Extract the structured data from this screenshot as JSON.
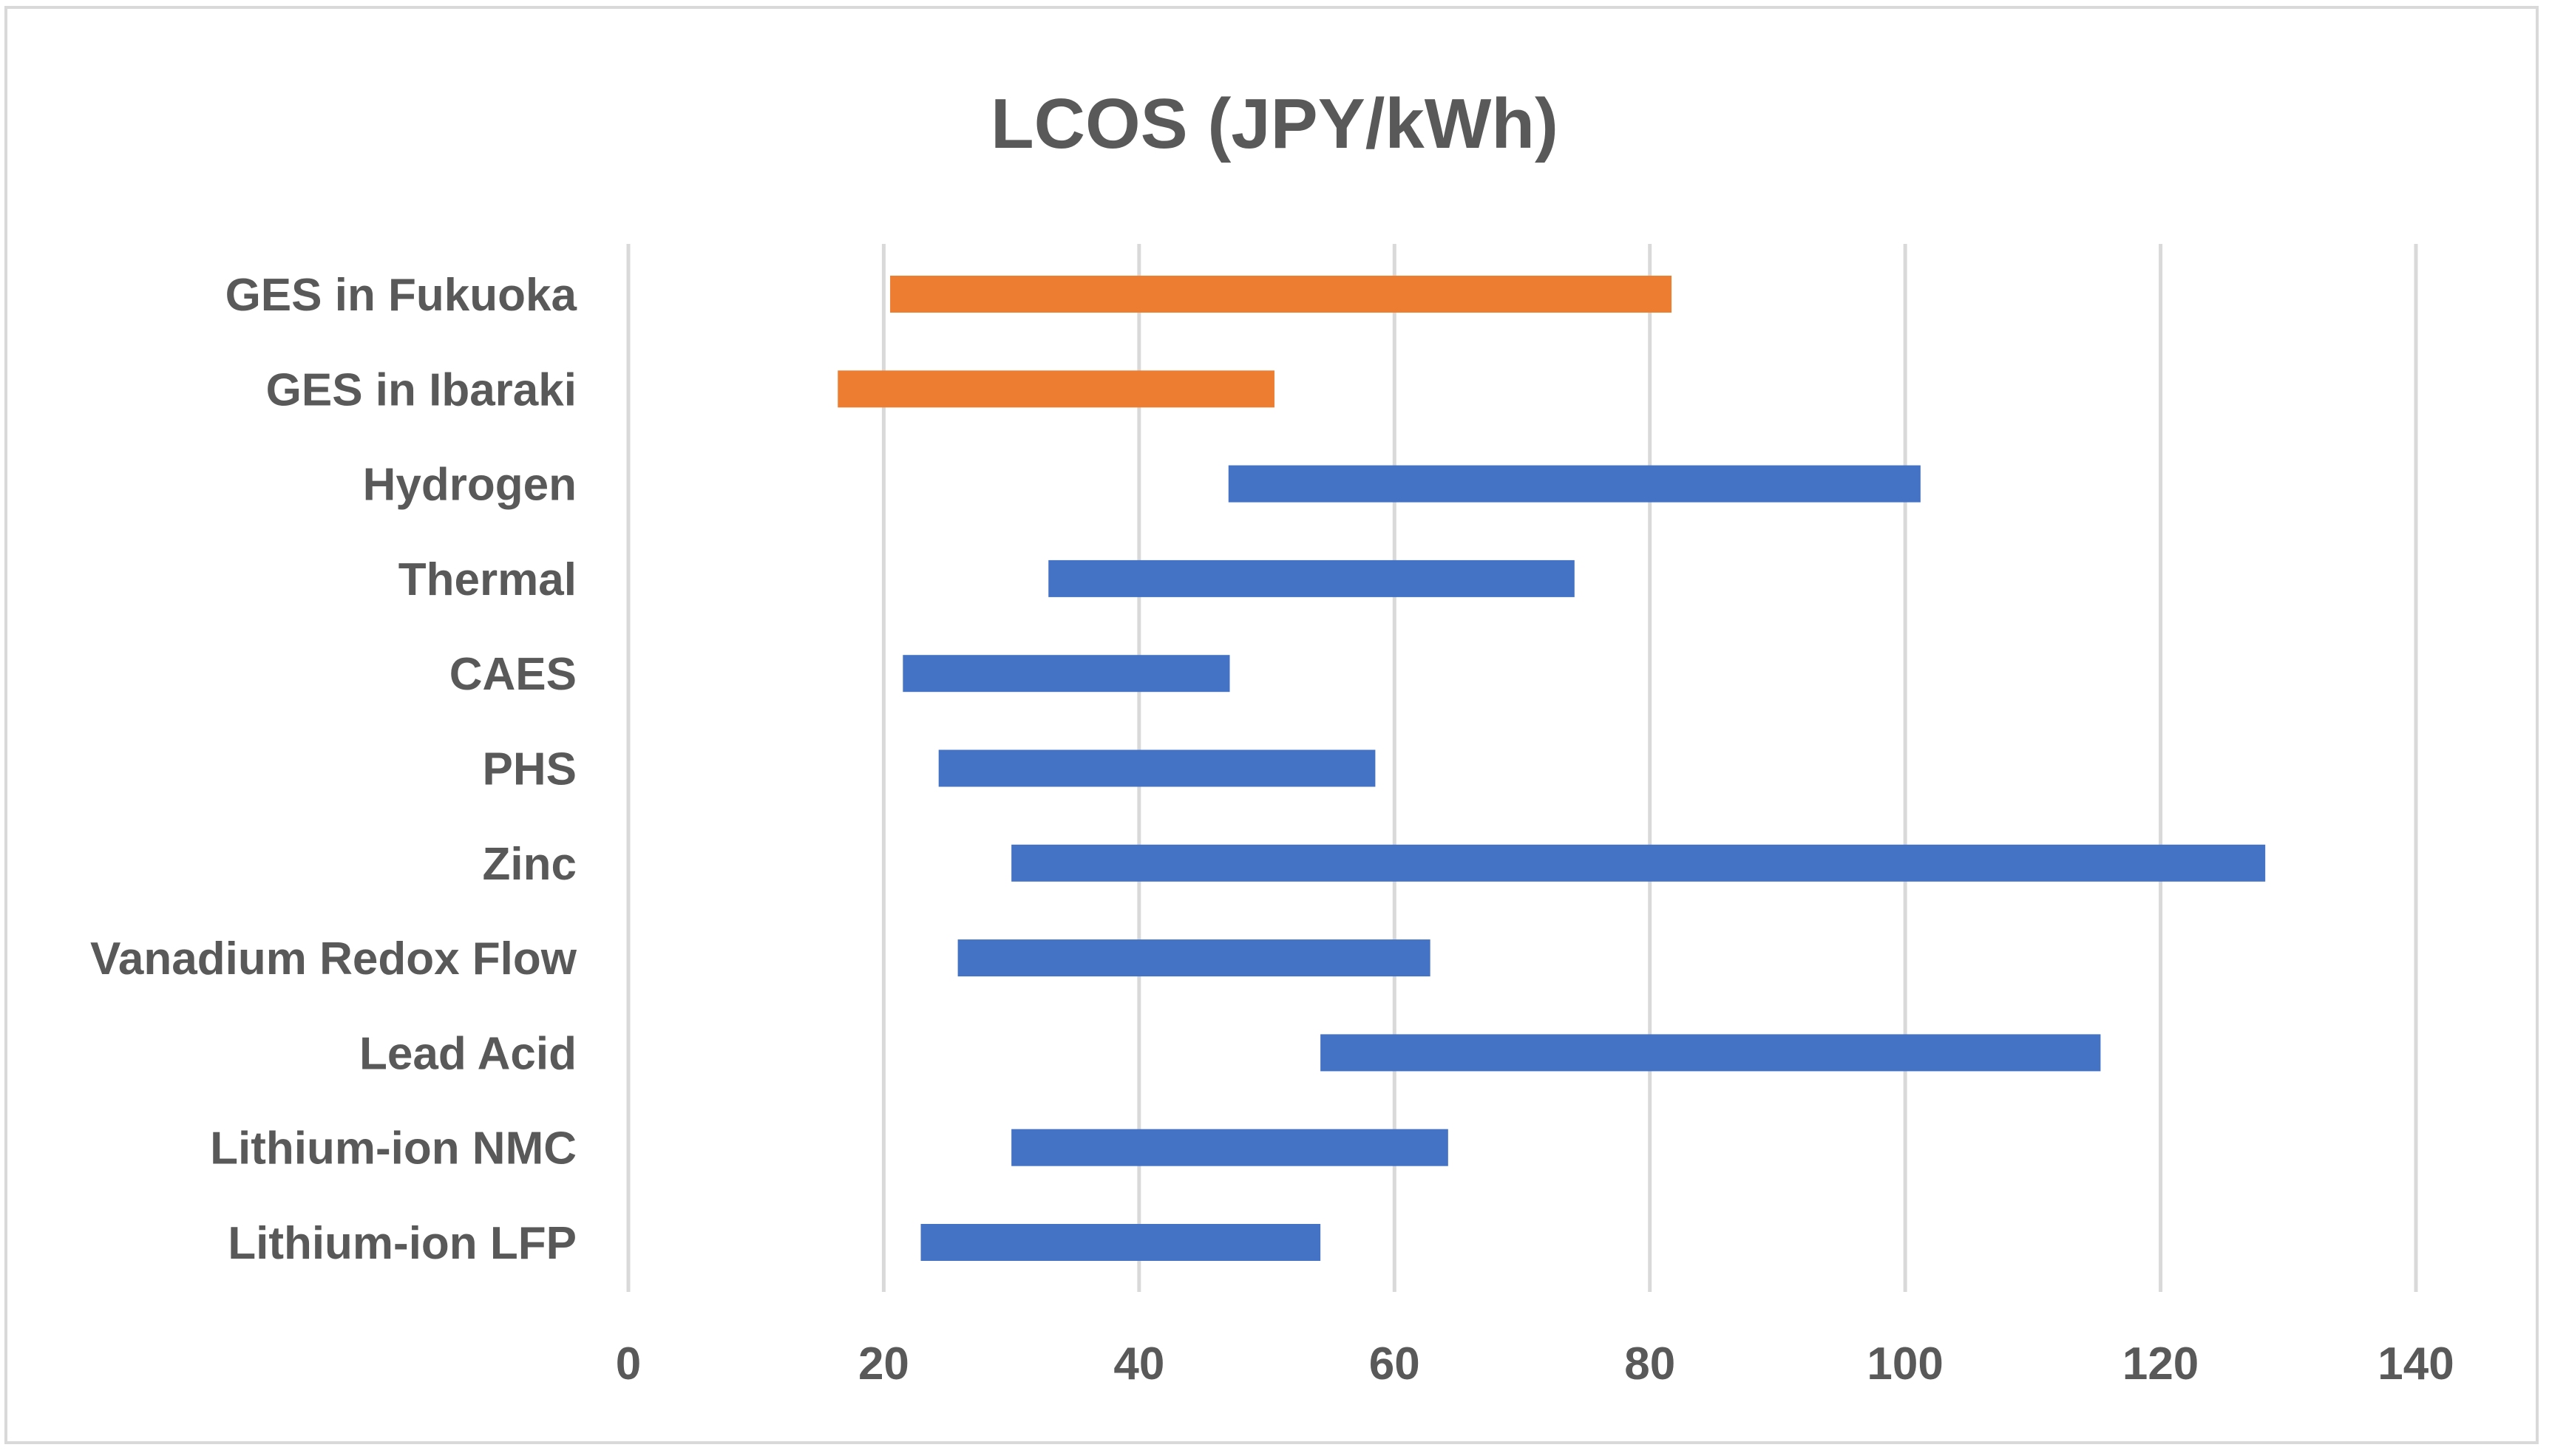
{
  "chart_data": {
    "type": "bar",
    "subtype": "floating-range-horizontal",
    "title": "LCOS (JPY/kWh)",
    "xlabel": "",
    "ylabel": "",
    "xlim": [
      0,
      140
    ],
    "xticks": [
      "0",
      "20",
      "40",
      "60",
      "80",
      "100",
      "120",
      "140"
    ],
    "xtick_values": [
      0,
      20,
      40,
      60,
      80,
      100,
      120,
      140
    ],
    "grid": "vertical",
    "legend": "none",
    "categories": [
      "GES in Fukuoka",
      "GES in Ibaraki",
      "Hydrogen",
      "Thermal",
      "CAES",
      "PHS",
      "Zinc",
      "Vanadium Redox Flow",
      "Lead Acid",
      "Lithium-ion NMC",
      "Lithium-ion LFP"
    ],
    "ranges": [
      {
        "min": 20.5,
        "max": 81.7,
        "color": "#ed7d31"
      },
      {
        "min": 16.4,
        "max": 50.6,
        "color": "#ed7d31"
      },
      {
        "min": 47.0,
        "max": 101.2,
        "color": "#4472c4"
      },
      {
        "min": 32.9,
        "max": 74.1,
        "color": "#4472c4"
      },
      {
        "min": 21.5,
        "max": 47.1,
        "color": "#4472c4"
      },
      {
        "min": 24.3,
        "max": 58.5,
        "color": "#4472c4"
      },
      {
        "min": 30.0,
        "max": 128.2,
        "color": "#4472c4"
      },
      {
        "min": 25.8,
        "max": 62.8,
        "color": "#4472c4"
      },
      {
        "min": 54.2,
        "max": 115.3,
        "color": "#4472c4"
      },
      {
        "min": 30.0,
        "max": 64.2,
        "color": "#4472c4"
      },
      {
        "min": 22.9,
        "max": 54.2,
        "color": "#4472c4"
      }
    ],
    "colors": {
      "ges": "#ed7d31",
      "storage": "#4472c4",
      "gridline": "#d9d9d9",
      "text": "#595959"
    }
  }
}
